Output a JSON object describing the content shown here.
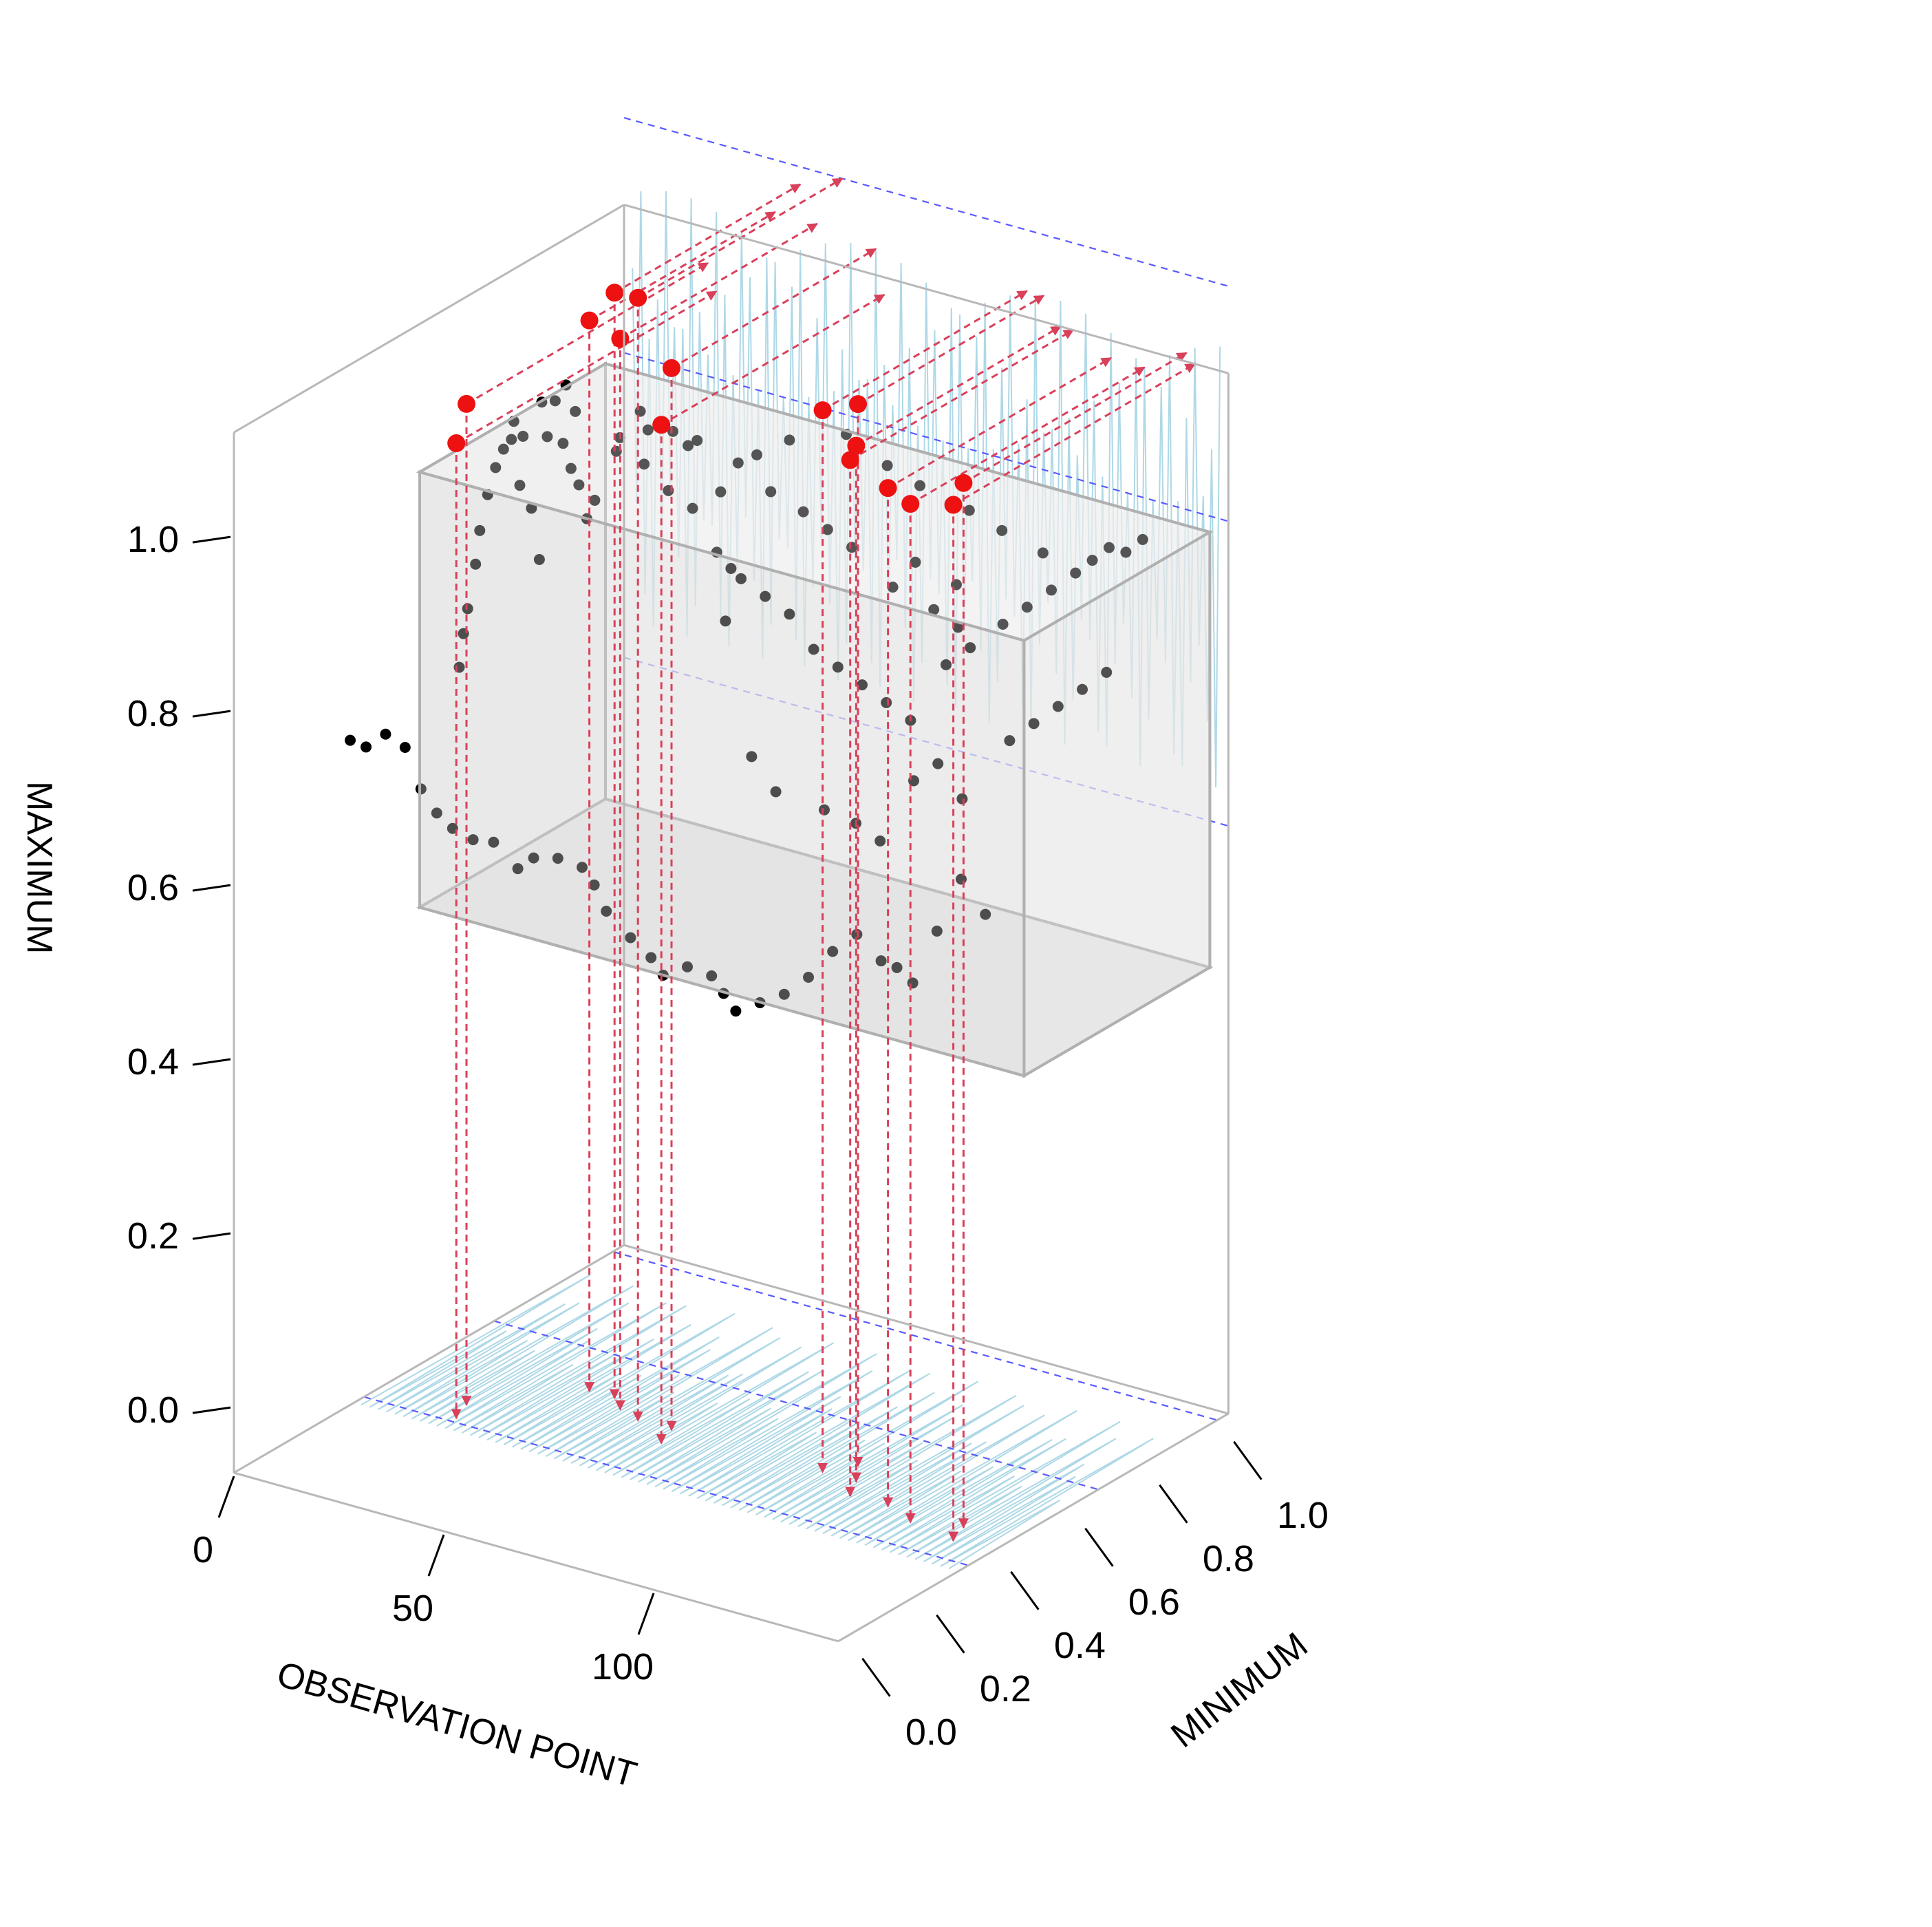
{
  "chart_data": {
    "type": "scatter",
    "plot3d": true,
    "xlabel": "OBSERVATION POINT",
    "ylabel": "MINIMUM",
    "zlabel": "MAXIMUM",
    "x_ticks": [
      "0",
      "50",
      "100"
    ],
    "y_ticks": [
      "0.0",
      "0.2",
      "0.4",
      "0.6",
      "0.8",
      "1.0"
    ],
    "z_ticks": [
      "0.0",
      "0.2",
      "0.4",
      "0.6",
      "0.8",
      "1.0"
    ],
    "xlim": [
      0,
      144
    ],
    "ylim": [
      0,
      1.05
    ],
    "zlim": [
      0,
      1.1
    ],
    "normal_box": {
      "min_range": [
        0.5,
        1.0
      ],
      "max_range": [
        0.45,
        0.95
      ]
    },
    "points": [
      [
        5,
        0.55,
        0.72
      ],
      [
        6,
        0.55,
        0.76
      ],
      [
        7,
        0.55,
        0.79
      ],
      [
        8,
        0.56,
        0.84
      ],
      [
        9,
        0.56,
        0.88
      ],
      [
        10,
        0.57,
        0.92
      ],
      [
        11,
        0.58,
        0.95
      ],
      [
        12,
        0.59,
        0.97
      ],
      [
        13,
        0.6,
        0.98
      ],
      [
        14,
        0.62,
        0.98
      ],
      [
        15,
        0.6,
        0.93
      ],
      [
        16,
        0.62,
        0.9
      ],
      [
        17,
        0.63,
        0.84
      ],
      [
        18,
        0.64,
        0.98
      ],
      [
        19,
        0.65,
        1.02
      ],
      [
        20,
        0.66,
        0.97
      ],
      [
        21,
        0.67,
        0.94
      ],
      [
        22,
        0.68,
        0.92
      ],
      [
        23,
        0.69,
        0.88
      ],
      [
        24,
        0.7,
        0.9
      ],
      [
        10,
        0.2,
        0.73
      ],
      [
        12,
        0.22,
        0.72
      ],
      [
        14,
        0.25,
        0.73
      ],
      [
        16,
        0.28,
        0.71
      ],
      [
        18,
        0.3,
        0.66
      ],
      [
        20,
        0.32,
        0.63
      ],
      [
        22,
        0.34,
        0.61
      ],
      [
        26,
        0.35,
        0.6
      ],
      [
        30,
        0.36,
        0.6
      ],
      [
        34,
        0.38,
        0.57
      ],
      [
        36,
        0.4,
        0.58
      ],
      [
        40,
        0.42,
        0.58
      ],
      [
        44,
        0.44,
        0.57
      ],
      [
        46,
        0.45,
        0.55
      ],
      [
        48,
        0.46,
        0.52
      ],
      [
        52,
        0.48,
        0.49
      ],
      [
        56,
        0.49,
        0.47
      ],
      [
        58,
        0.5,
        0.45
      ],
      [
        62,
        0.52,
        0.46
      ],
      [
        66,
        0.54,
        0.45
      ],
      [
        68,
        0.55,
        0.43
      ],
      [
        70,
        0.56,
        0.41
      ],
      [
        74,
        0.58,
        0.42
      ],
      [
        78,
        0.6,
        0.43
      ],
      [
        82,
        0.62,
        0.45
      ],
      [
        86,
        0.64,
        0.48
      ],
      [
        90,
        0.66,
        0.5
      ],
      [
        94,
        0.68,
        0.47
      ],
      [
        96,
        0.7,
        0.46
      ],
      [
        98,
        0.72,
        0.44
      ],
      [
        102,
        0.74,
        0.5
      ],
      [
        106,
        0.76,
        0.56
      ],
      [
        110,
        0.78,
        0.52
      ],
      [
        30,
        0.7,
        0.98
      ],
      [
        34,
        0.72,
        0.95
      ],
      [
        38,
        0.74,
        0.92
      ],
      [
        42,
        0.76,
        0.9
      ],
      [
        46,
        0.78,
        0.85
      ],
      [
        50,
        0.8,
        0.82
      ],
      [
        54,
        0.82,
        0.8
      ],
      [
        58,
        0.84,
        0.78
      ],
      [
        62,
        0.86,
        0.74
      ],
      [
        66,
        0.88,
        0.72
      ],
      [
        70,
        0.9,
        0.7
      ],
      [
        74,
        0.92,
        0.68
      ],
      [
        78,
        0.94,
        0.66
      ],
      [
        26,
        0.8,
        0.98
      ],
      [
        32,
        0.82,
        0.96
      ],
      [
        36,
        0.84,
        0.95
      ],
      [
        44,
        0.86,
        0.93
      ],
      [
        50,
        0.88,
        0.9
      ],
      [
        56,
        0.9,
        0.88
      ],
      [
        60,
        0.92,
        0.86
      ],
      [
        64,
        0.94,
        0.84
      ],
      [
        72,
        0.96,
        0.8
      ],
      [
        80,
        0.98,
        0.78
      ],
      [
        84,
        1.0,
        0.76
      ],
      [
        90,
        0.9,
        0.75
      ],
      [
        94,
        0.92,
        0.77
      ],
      [
        100,
        0.94,
        0.8
      ],
      [
        104,
        0.96,
        0.82
      ],
      [
        108,
        0.98,
        0.84
      ],
      [
        112,
        1.0,
        0.86
      ],
      [
        116,
        1.0,
        0.88
      ],
      [
        120,
        1.0,
        0.9
      ],
      [
        124,
        1.0,
        0.9
      ],
      [
        128,
        1.0,
        0.92
      ],
      [
        114,
        0.8,
        0.72
      ],
      [
        118,
        0.82,
        0.74
      ],
      [
        122,
        0.84,
        0.76
      ],
      [
        126,
        0.86,
        0.78
      ],
      [
        130,
        0.88,
        0.8
      ],
      [
        100,
        0.7,
        0.68
      ],
      [
        104,
        0.72,
        0.7
      ],
      [
        108,
        0.74,
        0.66
      ],
      [
        88,
        0.68,
        0.62
      ],
      [
        92,
        0.7,
        0.6
      ],
      [
        84,
        0.64,
        0.64
      ],
      [
        76,
        0.6,
        0.66
      ],
      [
        72,
        0.58,
        0.7
      ],
      [
        64,
        0.6,
        0.84
      ],
      [
        60,
        0.66,
        0.88
      ],
      [
        54,
        0.7,
        0.95
      ],
      [
        48,
        0.68,
        1.0
      ],
      [
        42,
        0.64,
        1.02
      ],
      [
        38,
        0.6,
        1.0
      ],
      [
        30,
        0.58,
        1.04
      ],
      [
        26,
        0.6,
        1.06
      ],
      [
        22,
        0.58,
        1.04
      ],
      [
        18,
        0.55,
        1.02
      ],
      [
        52,
        0.82,
        0.96
      ],
      [
        58,
        0.84,
        0.98
      ],
      [
        68,
        0.88,
        0.99
      ],
      [
        76,
        0.9,
        0.96
      ],
      [
        82,
        0.92,
        0.94
      ],
      [
        92,
        0.94,
        0.92
      ],
      [
        98,
        0.96,
        0.9
      ],
      [
        106,
        0.98,
        0.88
      ],
      [
        96,
        0.86,
        0.86
      ],
      [
        88,
        0.84,
        0.88
      ]
    ],
    "outliers": [
      [
        20,
        0.4,
        1.08
      ],
      [
        22,
        0.35,
        1.05
      ],
      [
        36,
        0.55,
        1.16
      ],
      [
        42,
        0.55,
        1.2
      ],
      [
        46,
        0.52,
        1.16
      ],
      [
        52,
        0.5,
        1.22
      ],
      [
        60,
        0.5,
        1.15
      ],
      [
        62,
        0.45,
        1.1
      ],
      [
        96,
        0.5,
        1.15
      ],
      [
        100,
        0.55,
        1.15
      ],
      [
        104,
        0.5,
        1.12
      ],
      [
        107,
        0.45,
        1.12
      ],
      [
        116,
        0.45,
        1.1
      ],
      [
        124,
        0.42,
        1.1
      ],
      [
        134,
        0.45,
        1.13
      ],
      [
        136,
        0.4,
        1.12
      ]
    ]
  }
}
